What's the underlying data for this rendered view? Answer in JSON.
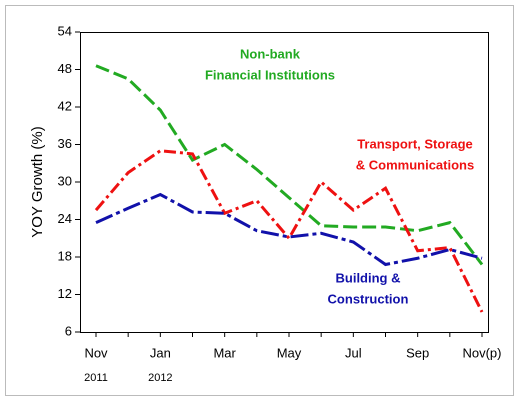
{
  "chart_data": {
    "type": "line",
    "y_label": "YOY Growth (%)",
    "categories": [
      "Nov",
      null,
      "Jan",
      null,
      "Mar",
      null,
      "May",
      null,
      "Jul",
      null,
      "Sep",
      null,
      "Nov(p)"
    ],
    "year_labels": [
      "2011",
      null,
      "2012",
      null,
      null,
      null,
      null,
      null,
      null,
      null,
      null,
      null,
      null
    ],
    "ylim": [
      6,
      54
    ],
    "yticks": [
      6,
      12,
      18,
      24,
      30,
      36,
      42,
      48,
      54
    ],
    "series": [
      {
        "label_lines": [
          "Non-bank",
          "Financial Institutions"
        ],
        "color": "#22aa22",
        "line_style": "dash",
        "values": [
          48.6,
          46.5,
          41.5,
          33.5,
          36,
          32,
          27.5,
          23,
          22.8,
          22.8,
          22.2,
          23.5,
          16.8
        ]
      },
      {
        "label_lines": [
          "Transport, Storage",
          "& Communications"
        ],
        "color": "#ee1111",
        "line_style": "dashdot",
        "values": [
          25.5,
          31.5,
          35,
          34.5,
          25,
          27,
          21,
          30,
          25.5,
          29,
          19,
          19.5,
          9.2
        ]
      },
      {
        "label_lines": [
          "Building &",
          "Construction"
        ],
        "color": "#1111aa",
        "line_style": "longdashdot",
        "values": [
          23.5,
          25.8,
          28,
          25.2,
          25,
          22.2,
          21.2,
          21.8,
          20.4,
          16.8,
          17.8,
          19.2,
          17.8
        ]
      }
    ]
  }
}
